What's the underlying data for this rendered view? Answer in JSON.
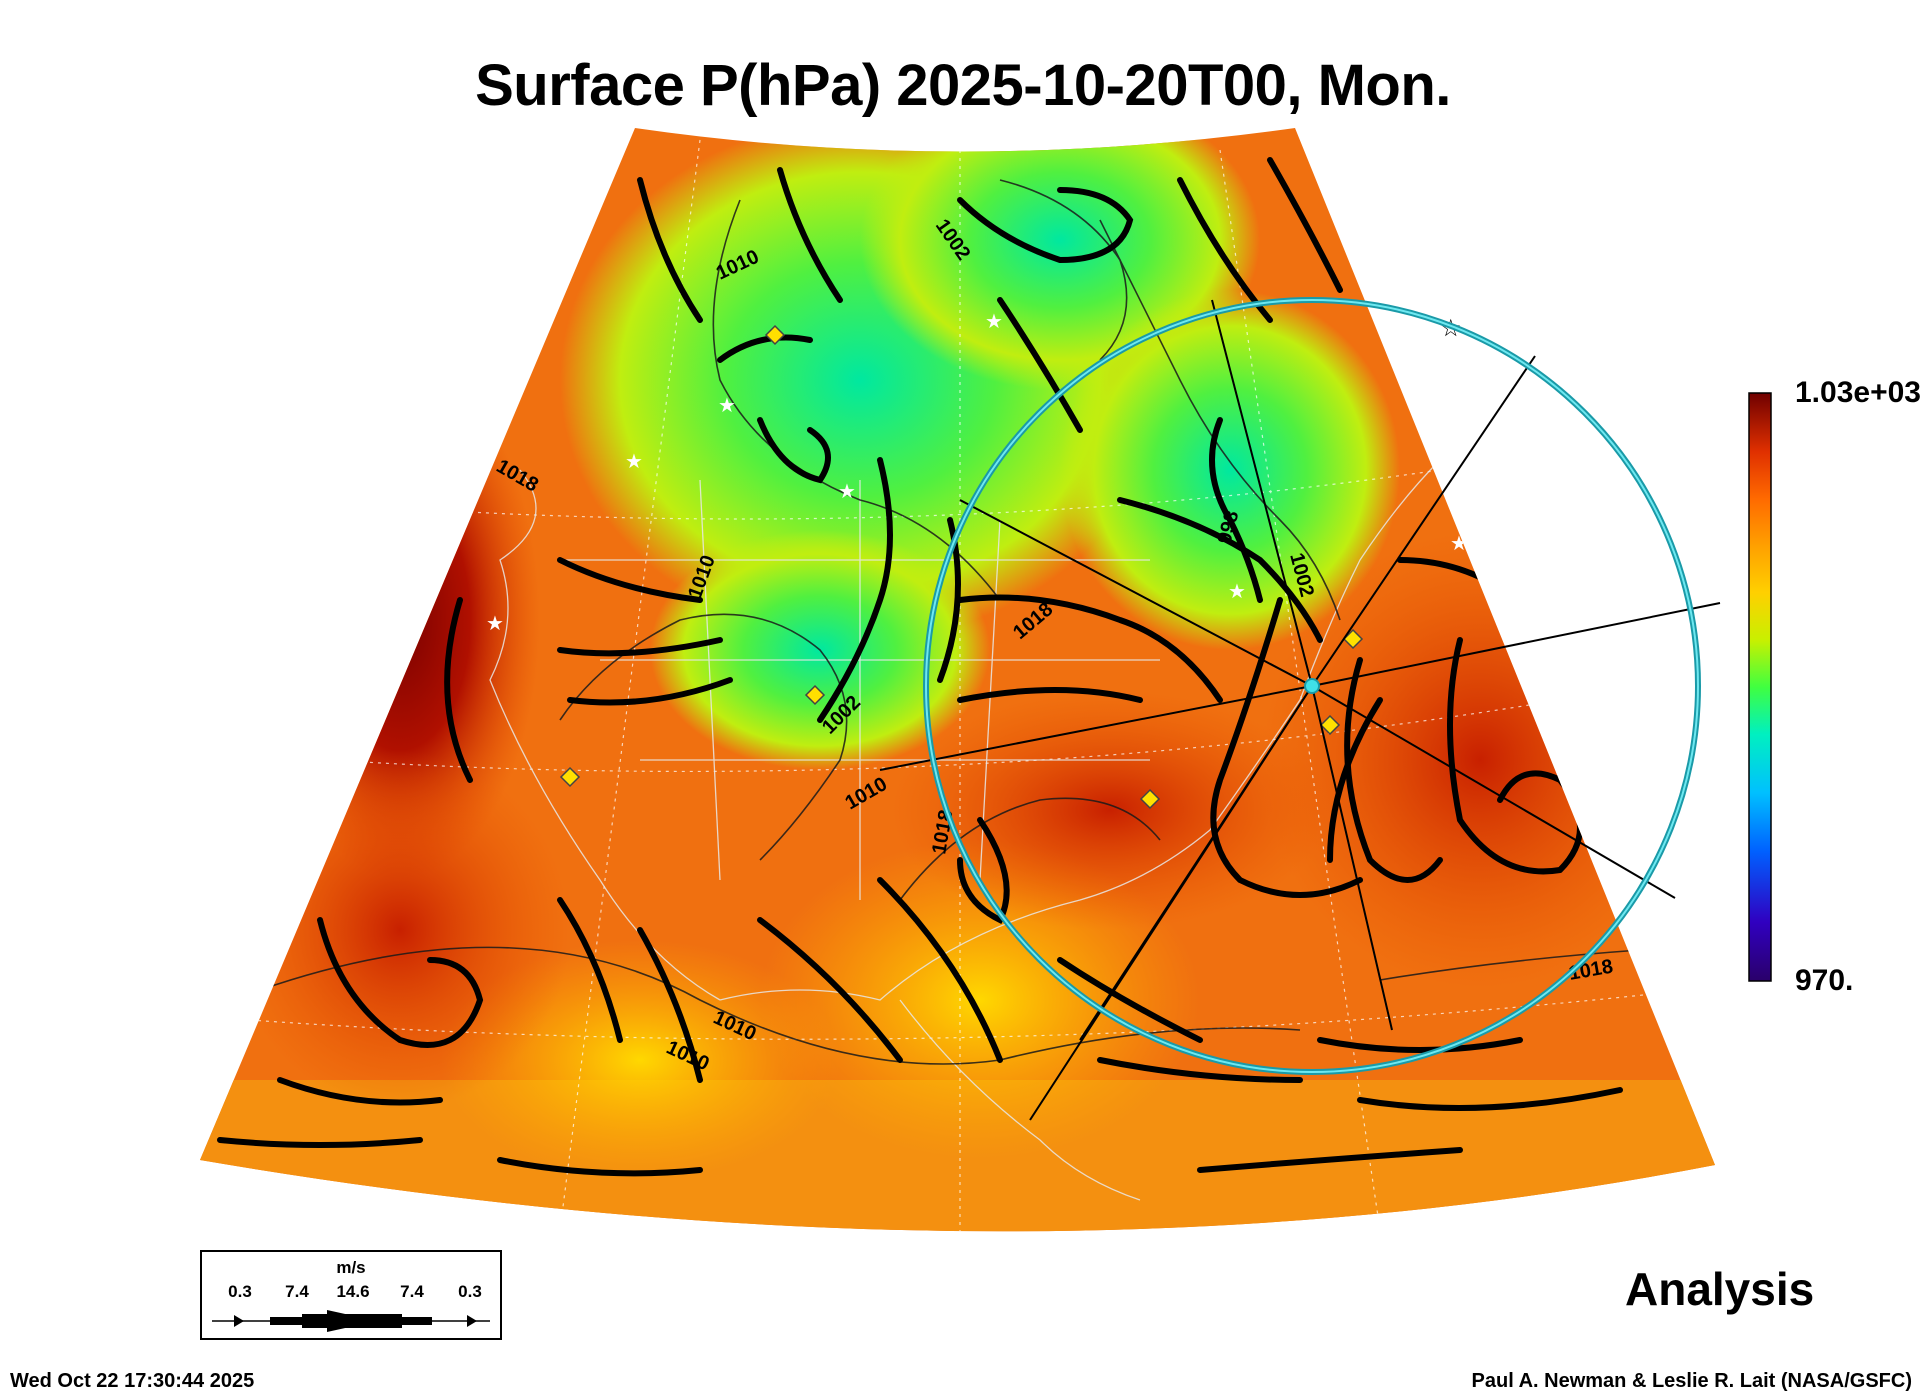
{
  "title": "Surface P(hPa) 2025-10-20T00, Mon.",
  "colorbar": {
    "max_label": "1.03e+03",
    "min_label": "970.",
    "colors": [
      "#6a006a",
      "#3a00b0",
      "#0040ff",
      "#00a0ff",
      "#00e0e0",
      "#00ff90",
      "#60ff20",
      "#c8f000",
      "#ffd000",
      "#ffa000",
      "#ff7000",
      "#f04000",
      "#c81000",
      "#800000"
    ]
  },
  "contour_labels": [
    "1010",
    "1002",
    "1018",
    "1010",
    "1002",
    "1010",
    "998",
    "1002",
    "1018",
    "1018",
    "1010",
    "1010",
    "1018"
  ],
  "legend": {
    "unit": "m/s",
    "ticks": [
      "0.3",
      "7.4",
      "14.6",
      "7.4",
      "0.3"
    ]
  },
  "analysis_label": "Analysis",
  "timestamp": "Wed Oct 22 17:30:44 2025",
  "credit": "Paul A. Newman & Leslie R. Lait (NASA/GSFC)"
}
